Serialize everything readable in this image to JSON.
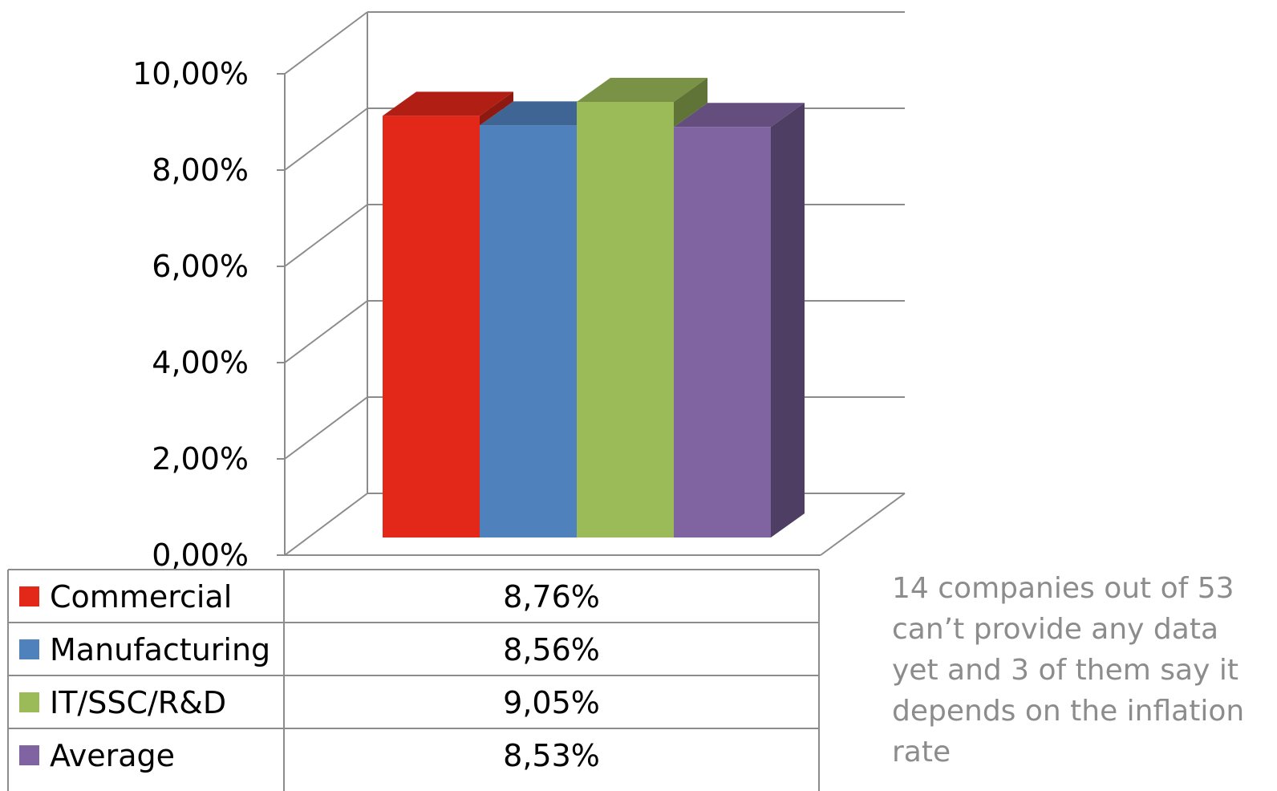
{
  "chart_data": {
    "type": "bar",
    "style": "3d-clustered-column-with-data-table",
    "categories": [
      ""
    ],
    "series": [
      {
        "name": "Commercial",
        "value": 8.76,
        "label": "8,76%",
        "color": "#E3281A"
      },
      {
        "name": "Manufacturing",
        "value": 8.56,
        "label": "8,56%",
        "color": "#4F81BD"
      },
      {
        "name": "IT/SSC/R&D",
        "value": 9.05,
        "label": "9,05%",
        "color": "#9BBB59"
      },
      {
        "name": "Average",
        "value": 8.53,
        "label": "8,53%",
        "color": "#8064A2"
      }
    ],
    "yticks": [
      "0,00%",
      "2,00%",
      "4,00%",
      "6,00%",
      "8,00%",
      "10,00%"
    ],
    "ylim": [
      0,
      10
    ],
    "grid": true,
    "legend": "data-table-below"
  },
  "note": "14 companies out of 53 can’t provide any data yet and 3 of them say it depends on the inflation rate"
}
